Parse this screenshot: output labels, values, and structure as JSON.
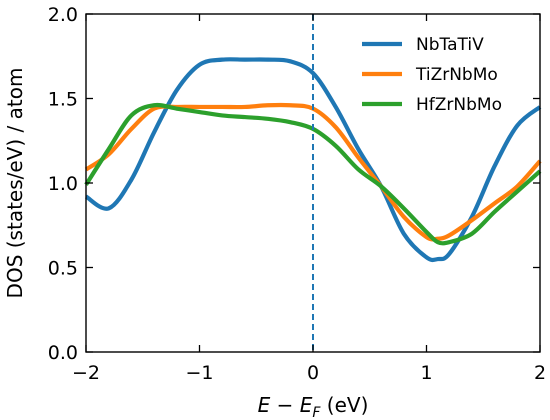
{
  "chart_data": {
    "type": "line",
    "xlabel": {
      "base": "E − E",
      "sub": "F",
      "unit": " (eV)"
    },
    "ylabel": "DOS (states/eV) / atom",
    "xlim": [
      -2,
      2
    ],
    "ylim": [
      0,
      2
    ],
    "x_ticks": [
      -2,
      -1,
      0,
      1,
      2
    ],
    "x_tick_labels": [
      "−2",
      "−1",
      "0",
      "1",
      "2"
    ],
    "y_ticks": [
      0,
      0.5,
      1,
      1.5,
      2
    ],
    "y_tick_labels": [
      "0.0",
      "0.5",
      "1.0",
      "1.5",
      "2.0"
    ],
    "grid": false,
    "legend_position": "top-right",
    "reference_line": {
      "x": 0,
      "style": "dashed",
      "color": "#1f77b4"
    },
    "x": [
      -2.0,
      -1.8,
      -1.6,
      -1.4,
      -1.2,
      -1.0,
      -0.8,
      -0.6,
      -0.4,
      -0.2,
      0.0,
      0.2,
      0.4,
      0.6,
      0.8,
      1.0,
      1.1,
      1.2,
      1.4,
      1.6,
      1.8,
      2.0
    ],
    "series": [
      {
        "name": "NbTaTiV",
        "color": "#1f77b4",
        "values": [
          0.92,
          0.85,
          1.02,
          1.3,
          1.55,
          1.7,
          1.73,
          1.73,
          1.73,
          1.72,
          1.65,
          1.45,
          1.2,
          0.98,
          0.7,
          0.56,
          0.55,
          0.58,
          0.8,
          1.1,
          1.34,
          1.45
        ]
      },
      {
        "name": "TiZrNbMo",
        "color": "#ff7f0e",
        "values": [
          1.08,
          1.17,
          1.32,
          1.44,
          1.45,
          1.45,
          1.45,
          1.45,
          1.46,
          1.46,
          1.44,
          1.33,
          1.15,
          0.98,
          0.8,
          0.68,
          0.67,
          0.69,
          0.78,
          0.88,
          0.98,
          1.13
        ]
      },
      {
        "name": "HfZrNbMo",
        "color": "#2ca02c",
        "values": [
          0.99,
          1.2,
          1.4,
          1.46,
          1.44,
          1.42,
          1.4,
          1.39,
          1.38,
          1.36,
          1.32,
          1.22,
          1.08,
          0.98,
          0.85,
          0.71,
          0.65,
          0.65,
          0.7,
          0.83,
          0.95,
          1.07
        ]
      }
    ]
  }
}
